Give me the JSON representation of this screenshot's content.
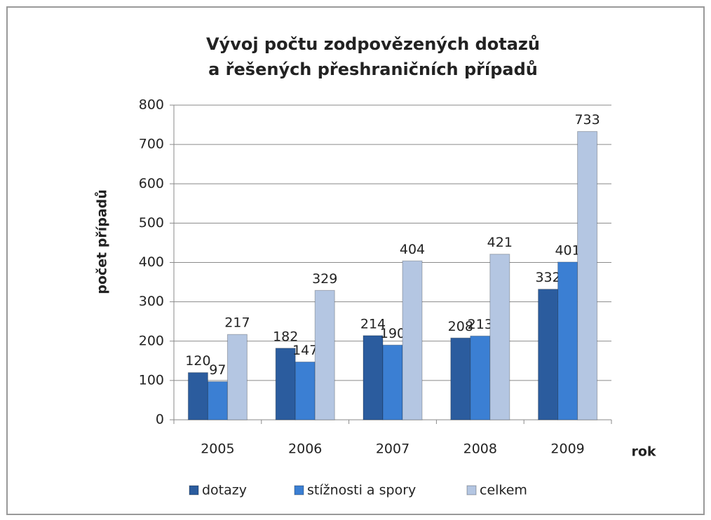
{
  "chart_data": {
    "type": "bar",
    "title": [
      "Vývoj počtu zodpovězených dotazů",
      "a řešených přeshraničních případů"
    ],
    "y_axis_label": "počet případů",
    "x_axis_label": "rok",
    "categories": [
      "2005",
      "2006",
      "2007",
      "2008",
      "2009"
    ],
    "series": [
      {
        "name": "dotazy",
        "color": "#2b5c9e",
        "values": [
          120,
          182,
          214,
          208,
          332
        ]
      },
      {
        "name": "stížnosti a spory",
        "color": "#3b7fd3",
        "values": [
          97,
          147,
          190,
          213,
          401
        ]
      },
      {
        "name": "celkem",
        "color": "#b4c6e2",
        "values": [
          217,
          329,
          404,
          421,
          733
        ]
      }
    ],
    "ylim": [
      0,
      800
    ],
    "yticks": [
      0,
      100,
      200,
      300,
      400,
      500,
      600,
      700,
      800
    ],
    "grid": true,
    "legend": "bottom"
  }
}
